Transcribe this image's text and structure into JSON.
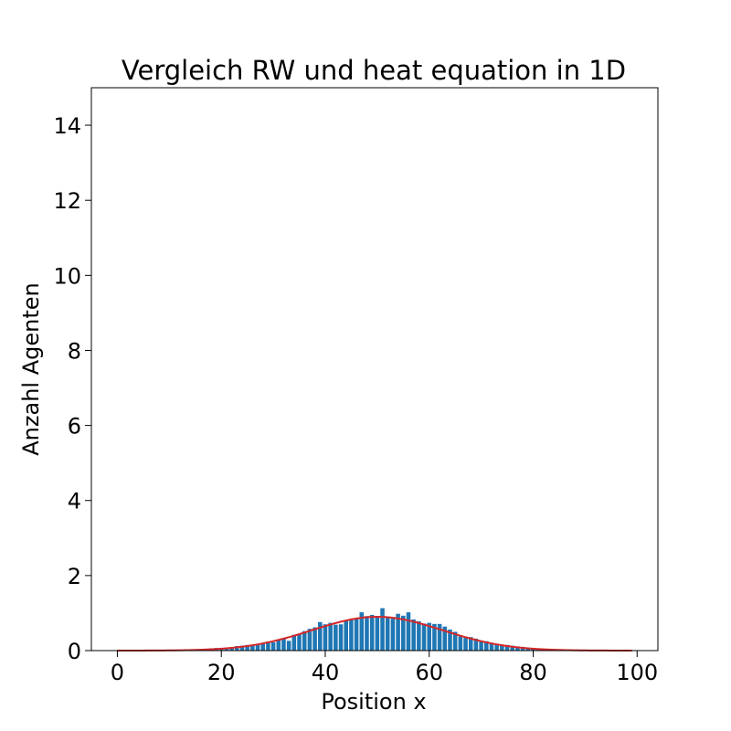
{
  "chart_data": {
    "type": "bar",
    "title": "Vergleich RW und heat equation in 1D",
    "xlabel": "Position x",
    "ylabel": "Anzahl Agenten",
    "xlim": [
      -5,
      104
    ],
    "ylim": [
      0,
      15
    ],
    "xticks": [
      0,
      20,
      40,
      60,
      80,
      100
    ],
    "yticks": [
      0,
      2,
      4,
      6,
      8,
      10,
      12,
      14
    ],
    "grid": false,
    "legend": "none",
    "bar_color": "#1f77b4",
    "curve_color": "#d62728",
    "bars": {
      "x": [
        0,
        1,
        2,
        3,
        4,
        5,
        6,
        7,
        8,
        9,
        10,
        11,
        12,
        13,
        14,
        15,
        16,
        17,
        18,
        19,
        20,
        21,
        22,
        23,
        24,
        25,
        26,
        27,
        28,
        29,
        30,
        31,
        32,
        33,
        34,
        35,
        36,
        37,
        38,
        39,
        40,
        41,
        42,
        43,
        44,
        45,
        46,
        47,
        48,
        49,
        50,
        51,
        52,
        53,
        54,
        55,
        56,
        57,
        58,
        59,
        60,
        61,
        62,
        63,
        64,
        65,
        66,
        67,
        68,
        69,
        70,
        71,
        72,
        73,
        74,
        75,
        76,
        77,
        78,
        79,
        80,
        81,
        82,
        83,
        84,
        85,
        86,
        87,
        88,
        89,
        90,
        91,
        92,
        93,
        94,
        95,
        96,
        97,
        98,
        99
      ],
      "values": [
        0,
        0,
        0,
        0,
        0,
        0,
        0,
        0,
        0,
        0,
        0.01,
        0.01,
        0.01,
        0.01,
        0.02,
        0.03,
        0.04,
        0.05,
        0.06,
        0.07,
        0.06,
        0.08,
        0.09,
        0.12,
        0.13,
        0.15,
        0.14,
        0.17,
        0.18,
        0.24,
        0.22,
        0.3,
        0.32,
        0.26,
        0.42,
        0.45,
        0.52,
        0.58,
        0.62,
        0.76,
        0.7,
        0.74,
        0.69,
        0.7,
        0.8,
        0.83,
        0.86,
        1.02,
        0.92,
        0.95,
        0.9,
        1.13,
        0.88,
        0.85,
        0.98,
        0.93,
        1.02,
        0.83,
        0.78,
        0.72,
        0.74,
        0.71,
        0.71,
        0.64,
        0.56,
        0.5,
        0.38,
        0.34,
        0.36,
        0.32,
        0.26,
        0.25,
        0.21,
        0.18,
        0.16,
        0.15,
        0.13,
        0.11,
        0.1,
        0.07,
        0.06,
        0.05,
        0.05,
        0.04,
        0.03,
        0.03,
        0.02,
        0.01,
        0.01,
        0.01,
        0.01,
        0.01,
        0,
        0,
        0,
        0,
        0,
        0,
        0,
        0
      ]
    },
    "curve": {
      "type": "line",
      "x_from": 0,
      "x_to": 99,
      "mean": 50,
      "sigma": 12.5,
      "peak": 0.9
    }
  }
}
